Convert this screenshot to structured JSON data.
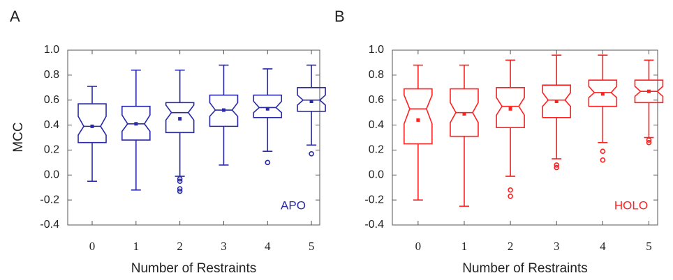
{
  "chart_data": [
    {
      "type": "boxplot",
      "panel": "A",
      "y_label": "MCC",
      "x_label": "Number of Restraints",
      "annotation": "APO",
      "color": "#2a2aa6",
      "categories": [
        "0",
        "1",
        "2",
        "3",
        "4",
        "5"
      ],
      "ylim": [
        -0.4,
        1.0
      ],
      "yticks": [
        -0.4,
        -0.2,
        {
          "value": 0,
          "label": "0.0"
        },
        0.2,
        0.4,
        0.6,
        0.8,
        {
          "value": 1,
          "label": "1.0"
        }
      ],
      "boxes": [
        {
          "whisker_low": -0.05,
          "q1": 0.26,
          "notch_low": 0.32,
          "median": 0.39,
          "notch_high": 0.47,
          "q3": 0.57,
          "whisker_high": 0.71,
          "mean": 0.39,
          "outliers": []
        },
        {
          "whisker_low": -0.12,
          "q1": 0.28,
          "notch_low": 0.35,
          "median": 0.41,
          "notch_high": 0.48,
          "q3": 0.55,
          "whisker_high": 0.84,
          "mean": 0.41,
          "outliers": []
        },
        {
          "whisker_low": -0.01,
          "q1": 0.34,
          "notch_low": 0.44,
          "median": 0.5,
          "notch_high": 0.56,
          "q3": 0.58,
          "whisker_high": 0.84,
          "mean": 0.45,
          "outliers": [
            -0.03,
            -0.05,
            -0.11,
            -0.13
          ]
        },
        {
          "whisker_low": 0.08,
          "q1": 0.39,
          "notch_low": 0.47,
          "median": 0.52,
          "notch_high": 0.58,
          "q3": 0.64,
          "whisker_high": 0.88,
          "mean": 0.52,
          "outliers": []
        },
        {
          "whisker_low": 0.19,
          "q1": 0.46,
          "notch_low": 0.5,
          "median": 0.54,
          "notch_high": 0.59,
          "q3": 0.64,
          "whisker_high": 0.85,
          "mean": 0.53,
          "outliers": [
            0.1
          ]
        },
        {
          "whisker_low": 0.24,
          "q1": 0.51,
          "notch_low": 0.56,
          "median": 0.6,
          "notch_high": 0.64,
          "q3": 0.7,
          "whisker_high": 0.88,
          "mean": 0.59,
          "outliers": [
            0.17
          ]
        }
      ]
    },
    {
      "type": "boxplot",
      "panel": "B",
      "x_label": "Number of Restraints",
      "annotation": "HOLO",
      "color": "#ff2020",
      "categories": [
        "0",
        "1",
        "2",
        "3",
        "4",
        "5"
      ],
      "ylim": [
        -0.4,
        1.0
      ],
      "yticks": [
        -0.4,
        -0.2,
        {
          "value": 0,
          "label": "0.0"
        },
        0.2,
        0.4,
        0.6,
        0.8,
        {
          "value": 1,
          "label": "1.0"
        }
      ],
      "boxes": [
        {
          "whisker_low": -0.2,
          "q1": 0.25,
          "notch_low": 0.41,
          "median": 0.53,
          "notch_high": 0.64,
          "q3": 0.69,
          "whisker_high": 0.88,
          "mean": 0.44,
          "outliers": []
        },
        {
          "whisker_low": -0.25,
          "q1": 0.31,
          "notch_low": 0.42,
          "median": 0.5,
          "notch_high": 0.58,
          "q3": 0.69,
          "whisker_high": 0.88,
          "mean": 0.49,
          "outliers": []
        },
        {
          "whisker_low": -0.01,
          "q1": 0.38,
          "notch_low": 0.48,
          "median": 0.55,
          "notch_high": 0.62,
          "q3": 0.7,
          "whisker_high": 0.92,
          "mean": 0.53,
          "outliers": [
            -0.12,
            -0.17
          ]
        },
        {
          "whisker_low": 0.13,
          "q1": 0.46,
          "notch_low": 0.55,
          "median": 0.6,
          "notch_high": 0.66,
          "q3": 0.72,
          "whisker_high": 0.96,
          "mean": 0.59,
          "outliers": [
            0.08,
            0.06
          ]
        },
        {
          "whisker_low": 0.26,
          "q1": 0.55,
          "notch_low": 0.62,
          "median": 0.66,
          "notch_high": 0.71,
          "q3": 0.76,
          "whisker_high": 0.96,
          "mean": 0.65,
          "outliers": [
            0.19,
            0.12
          ]
        },
        {
          "whisker_low": 0.3,
          "q1": 0.58,
          "notch_low": 0.63,
          "median": 0.67,
          "notch_high": 0.71,
          "q3": 0.76,
          "whisker_high": 0.92,
          "mean": 0.67,
          "outliers": [
            0.28,
            0.26
          ]
        }
      ]
    }
  ]
}
